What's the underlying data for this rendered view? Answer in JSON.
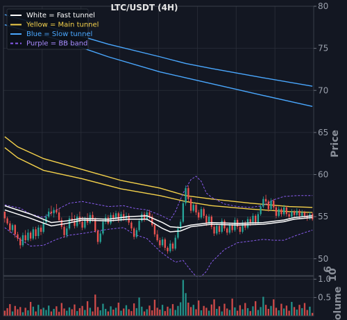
{
  "chart_data": {
    "type": "line",
    "title": "LTC/USDT (4H)",
    "ylabel": "Price",
    "volume_ylabel": "Volume",
    "volume_exponent": "6",
    "ylim": [
      48,
      80
    ],
    "yticks": [
      {
        "value": 50,
        "label": "50"
      },
      {
        "value": 55,
        "label": "55"
      },
      {
        "value": 60,
        "label": "60"
      },
      {
        "value": 65,
        "label": "65"
      },
      {
        "value": 70,
        "label": "70"
      },
      {
        "value": 75,
        "label": "75"
      },
      {
        "value": 80,
        "label": "80"
      }
    ],
    "volume_ylim": [
      0,
      1.08
    ],
    "volume_yticks": [
      {
        "value": 0.5,
        "label": "0.5"
      },
      {
        "value": 1.0,
        "label": "1.0"
      }
    ],
    "grid": true,
    "legend": {
      "placement": "top-left",
      "entries": [
        {
          "label": "White = Fast tunnel",
          "color": "#ffffff",
          "style": "solid"
        },
        {
          "label": "Yellow = Main tunnel",
          "color": "#f5d24b",
          "style": "solid"
        },
        {
          "label": "Blue = Slow tunnel",
          "color": "#4aa8ff",
          "style": "solid"
        },
        {
          "label": "Purple = BB band",
          "color": "#8a5cf0",
          "style": "dashed"
        }
      ]
    },
    "colors": {
      "background": "#131722",
      "grid": "#2a2f3a",
      "up": "#26a69a",
      "down": "#ef5350",
      "fast": "#ffffff",
      "main": "#f5d24b",
      "slow": "#4aa8ff",
      "bb": "#8a5cf0"
    },
    "n_candles": 120,
    "ohlc": [
      [
        55.6,
        55.6,
        54.3,
        54.8
      ],
      [
        54.8,
        55.0,
        54.0,
        54.2
      ],
      [
        54.2,
        54.5,
        53.1,
        53.4
      ],
      [
        53.4,
        54.2,
        53.1,
        54.0
      ],
      [
        54.0,
        54.1,
        52.5,
        52.9
      ],
      [
        52.9,
        53.2,
        52.1,
        52.4
      ],
      [
        52.4,
        52.6,
        51.2,
        51.6
      ],
      [
        51.6,
        53.1,
        51.4,
        52.8
      ],
      [
        52.8,
        53.4,
        51.9,
        52.2
      ],
      [
        52.2,
        53.5,
        52.0,
        53.1
      ],
      [
        53.1,
        53.3,
        52.1,
        52.4
      ],
      [
        52.4,
        53.8,
        52.2,
        53.5
      ],
      [
        53.5,
        53.8,
        52.3,
        52.7
      ],
      [
        52.7,
        54.0,
        52.4,
        53.7
      ],
      [
        53.7,
        54.0,
        52.8,
        53.2
      ],
      [
        53.2,
        54.6,
        53.0,
        54.3
      ],
      [
        54.3,
        55.3,
        54.1,
        55.0
      ],
      [
        55.0,
        56.0,
        54.8,
        55.6
      ],
      [
        55.6,
        56.3,
        55.1,
        55.4
      ],
      [
        55.4,
        56.1,
        54.9,
        55.8
      ],
      [
        55.8,
        56.5,
        55.3,
        55.5
      ],
      [
        55.5,
        56.0,
        54.4,
        54.6
      ],
      [
        54.6,
        54.9,
        53.5,
        53.8
      ],
      [
        53.8,
        54.1,
        52.5,
        52.8
      ],
      [
        52.8,
        53.9,
        52.5,
        53.6
      ],
      [
        53.6,
        55.1,
        53.4,
        54.8
      ],
      [
        54.8,
        55.5,
        54.3,
        54.5
      ],
      [
        54.5,
        55.2,
        53.6,
        53.9
      ],
      [
        53.9,
        55.3,
        53.7,
        55.0
      ],
      [
        55.0,
        55.6,
        54.1,
        54.4
      ],
      [
        54.4,
        55.0,
        53.4,
        53.7
      ],
      [
        53.7,
        55.0,
        53.5,
        54.7
      ],
      [
        54.7,
        55.4,
        54.0,
        54.3
      ],
      [
        54.3,
        55.5,
        54.1,
        55.2
      ],
      [
        55.2,
        55.6,
        54.4,
        54.7
      ],
      [
        54.7,
        54.9,
        53.1,
        53.3
      ],
      [
        53.3,
        53.5,
        51.7,
        52.0
      ],
      [
        52.0,
        53.3,
        51.8,
        53.0
      ],
      [
        53.0,
        54.7,
        52.8,
        54.4
      ],
      [
        54.4,
        55.3,
        54.1,
        54.9
      ],
      [
        54.9,
        55.2,
        54.0,
        54.2
      ],
      [
        54.2,
        55.5,
        54.0,
        55.2
      ],
      [
        55.2,
        55.5,
        54.4,
        54.8
      ],
      [
        54.8,
        55.7,
        54.5,
        55.4
      ],
      [
        55.4,
        55.6,
        54.3,
        54.6
      ],
      [
        54.6,
        55.6,
        54.4,
        55.3
      ],
      [
        55.3,
        55.8,
        54.5,
        54.8
      ],
      [
        54.8,
        55.5,
        54.4,
        55.1
      ],
      [
        55.1,
        55.4,
        54.0,
        54.3
      ],
      [
        54.3,
        54.5,
        53.3,
        53.6
      ],
      [
        53.6,
        53.8,
        52.3,
        52.6
      ],
      [
        52.6,
        53.7,
        52.4,
        53.4
      ],
      [
        53.4,
        54.8,
        53.2,
        54.5
      ],
      [
        54.5,
        55.6,
        54.3,
        55.3
      ],
      [
        55.3,
        55.6,
        54.4,
        54.7
      ],
      [
        54.7,
        55.8,
        54.5,
        55.5
      ],
      [
        55.5,
        55.8,
        54.7,
        55.0
      ],
      [
        55.0,
        55.3,
        53.8,
        54.0
      ],
      [
        54.0,
        54.2,
        52.6,
        52.9
      ],
      [
        52.9,
        53.4,
        52.0,
        52.2
      ],
      [
        52.2,
        52.5,
        51.3,
        51.6
      ],
      [
        51.6,
        52.6,
        51.4,
        52.3
      ],
      [
        52.3,
        52.5,
        51.0,
        51.3
      ],
      [
        51.3,
        51.5,
        50.6,
        50.9
      ],
      [
        50.9,
        52.2,
        50.7,
        51.8
      ],
      [
        51.8,
        52.0,
        50.9,
        51.2
      ],
      [
        51.2,
        52.8,
        51.0,
        52.5
      ],
      [
        52.5,
        53.9,
        52.3,
        53.6
      ],
      [
        53.6,
        54.7,
        53.4,
        54.4
      ],
      [
        54.4,
        56.9,
        54.2,
        56.6
      ],
      [
        56.6,
        58.7,
        56.3,
        58.4
      ],
      [
        58.4,
        58.7,
        56.8,
        57.1
      ],
      [
        57.1,
        57.3,
        55.4,
        55.7
      ],
      [
        55.7,
        56.7,
        55.5,
        56.4
      ],
      [
        56.4,
        56.6,
        55.2,
        55.5
      ],
      [
        55.5,
        55.8,
        54.6,
        54.9
      ],
      [
        54.9,
        56.2,
        54.7,
        55.9
      ],
      [
        55.9,
        56.1,
        54.8,
        55.1
      ],
      [
        55.1,
        55.3,
        53.9,
        54.2
      ],
      [
        54.2,
        55.3,
        54.0,
        55.0
      ],
      [
        55.0,
        55.2,
        53.5,
        53.8
      ],
      [
        53.8,
        54.1,
        52.7,
        53.0
      ],
      [
        53.0,
        54.2,
        52.8,
        53.9
      ],
      [
        53.9,
        54.1,
        52.9,
        53.2
      ],
      [
        53.2,
        54.8,
        53.0,
        54.5
      ],
      [
        54.5,
        54.7,
        53.3,
        53.6
      ],
      [
        53.6,
        53.8,
        52.8,
        53.1
      ],
      [
        53.1,
        54.3,
        52.9,
        54.0
      ],
      [
        54.0,
        54.3,
        53.1,
        53.4
      ],
      [
        53.4,
        54.9,
        53.2,
        54.6
      ],
      [
        54.6,
        54.8,
        53.5,
        53.8
      ],
      [
        53.8,
        54.2,
        52.9,
        53.2
      ],
      [
        53.2,
        54.6,
        53.0,
        54.3
      ],
      [
        54.3,
        54.5,
        53.4,
        53.7
      ],
      [
        53.7,
        55.0,
        53.5,
        54.7
      ],
      [
        54.7,
        55.0,
        53.9,
        54.2
      ],
      [
        54.2,
        55.4,
        54.0,
        55.1
      ],
      [
        55.1,
        55.3,
        54.0,
        54.3
      ],
      [
        54.3,
        55.6,
        54.1,
        55.3
      ],
      [
        55.3,
        56.5,
        55.1,
        56.2
      ],
      [
        56.2,
        57.4,
        56.0,
        57.1
      ],
      [
        57.1,
        57.6,
        56.5,
        56.8
      ],
      [
        56.8,
        57.0,
        55.6,
        55.9
      ],
      [
        55.9,
        57.2,
        55.7,
        56.9
      ],
      [
        56.9,
        57.1,
        55.8,
        56.1
      ],
      [
        56.1,
        56.3,
        54.8,
        55.1
      ],
      [
        55.1,
        56.2,
        54.9,
        55.9
      ],
      [
        55.9,
        56.1,
        55.0,
        55.3
      ],
      [
        55.3,
        56.4,
        55.1,
        56.1
      ],
      [
        56.1,
        56.3,
        55.0,
        55.3
      ],
      [
        55.3,
        55.5,
        54.7,
        55.0
      ],
      [
        55.0,
        55.9,
        54.8,
        55.6
      ],
      [
        55.6,
        55.8,
        54.9,
        55.2
      ],
      [
        55.2,
        56.0,
        55.0,
        55.7
      ],
      [
        55.7,
        55.9,
        54.8,
        55.1
      ],
      [
        55.1,
        55.8,
        54.9,
        55.5
      ],
      [
        55.5,
        55.7,
        54.8,
        55.1
      ],
      [
        55.1,
        55.4,
        54.5,
        54.8
      ],
      [
        54.8,
        55.6,
        54.6,
        55.3
      ],
      [
        55.3,
        55.5,
        54.5,
        54.7
      ]
    ],
    "volume": [
      0.14,
      0.21,
      0.32,
      0.12,
      0.27,
      0.18,
      0.24,
      0.1,
      0.22,
      0.15,
      0.38,
      0.25,
      0.12,
      0.3,
      0.18,
      0.22,
      0.16,
      0.28,
      0.12,
      0.19,
      0.26,
      0.11,
      0.35,
      0.2,
      0.14,
      0.23,
      0.18,
      0.31,
      0.13,
      0.21,
      0.27,
      0.16,
      0.4,
      0.22,
      0.12,
      0.58,
      0.24,
      0.15,
      0.33,
      0.19,
      0.12,
      0.26,
      0.17,
      0.22,
      0.36,
      0.14,
      0.2,
      0.29,
      0.18,
      0.13,
      0.34,
      0.21,
      0.5,
      0.25,
      0.12,
      0.18,
      0.28,
      0.15,
      0.44,
      0.22,
      0.17,
      0.3,
      0.13,
      0.25,
      0.2,
      0.32,
      0.16,
      0.27,
      0.37,
      0.98,
      0.62,
      0.36,
      0.24,
      0.3,
      0.18,
      0.42,
      0.15,
      0.27,
      0.22,
      0.14,
      0.31,
      0.45,
      0.19,
      0.26,
      0.12,
      0.33,
      0.2,
      0.16,
      0.47,
      0.23,
      0.14,
      0.29,
      0.18,
      0.35,
      0.21,
      0.13,
      0.26,
      0.4,
      0.16,
      0.24,
      0.52,
      0.3,
      0.19,
      0.27,
      0.45,
      0.22,
      0.15,
      0.33,
      0.2,
      0.28,
      0.14,
      0.38,
      0.24,
      0.17,
      0.3,
      0.21,
      0.35,
      0.16,
      0.25,
      0.08
    ],
    "fast_tunnel": {
      "upper": [
        [
          0,
          56.3
        ],
        [
          10,
          55.3
        ],
        [
          18,
          54.3
        ],
        [
          24,
          54.5
        ],
        [
          30,
          54.8
        ],
        [
          40,
          54.7
        ],
        [
          48,
          55.0
        ],
        [
          55,
          55.1
        ],
        [
          61,
          54.3
        ],
        [
          64,
          53.8
        ],
        [
          68,
          53.7
        ],
        [
          72,
          54.0
        ],
        [
          80,
          54.3
        ],
        [
          90,
          54.2
        ],
        [
          100,
          54.3
        ],
        [
          108,
          54.6
        ],
        [
          112,
          54.9
        ],
        [
          119,
          55.1
        ]
      ],
      "lower": [
        [
          0,
          55.8
        ],
        [
          10,
          54.8
        ],
        [
          18,
          53.9
        ],
        [
          24,
          54.2
        ],
        [
          30,
          54.6
        ],
        [
          40,
          54.5
        ],
        [
          48,
          54.7
        ],
        [
          55,
          54.7
        ],
        [
          61,
          53.6
        ],
        [
          64,
          53.2
        ],
        [
          68,
          53.3
        ],
        [
          72,
          53.8
        ],
        [
          80,
          54.1
        ],
        [
          90,
          54.0
        ],
        [
          100,
          54.1
        ],
        [
          108,
          54.4
        ],
        [
          112,
          54.7
        ],
        [
          119,
          54.9
        ]
      ]
    },
    "main_tunnel": {
      "upper": [
        [
          0,
          64.5
        ],
        [
          5,
          63.3
        ],
        [
          15,
          61.9
        ],
        [
          30,
          60.6
        ],
        [
          45,
          59.3
        ],
        [
          60,
          58.4
        ],
        [
          70,
          57.5
        ],
        [
          80,
          57.1
        ],
        [
          95,
          56.6
        ],
        [
          110,
          56.2
        ],
        [
          119,
          56.1
        ]
      ],
      "lower": [
        [
          0,
          63.2
        ],
        [
          5,
          62.0
        ],
        [
          15,
          60.5
        ],
        [
          30,
          59.5
        ],
        [
          45,
          58.3
        ],
        [
          60,
          57.5
        ],
        [
          70,
          56.8
        ],
        [
          80,
          56.3
        ],
        [
          95,
          55.9
        ],
        [
          110,
          55.6
        ],
        [
          119,
          55.5
        ]
      ]
    },
    "slow_tunnel": {
      "upper": [
        [
          0,
          79.0
        ],
        [
          20,
          77.3
        ],
        [
          40,
          75.5
        ],
        [
          60,
          74.0
        ],
        [
          70,
          73.2
        ],
        [
          80,
          72.6
        ],
        [
          100,
          71.5
        ],
        [
          119,
          70.5
        ]
      ],
      "lower": [
        [
          0,
          77.8
        ],
        [
          20,
          76.1
        ],
        [
          40,
          74.0
        ],
        [
          60,
          72.2
        ],
        [
          70,
          71.5
        ],
        [
          80,
          70.8
        ],
        [
          100,
          69.4
        ],
        [
          119,
          68.1
        ]
      ]
    },
    "bb_band": {
      "upper": [
        [
          0,
          56.4
        ],
        [
          6,
          56.0
        ],
        [
          10,
          55.3
        ],
        [
          15,
          54.9
        ],
        [
          20,
          55.8
        ],
        [
          25,
          56.6
        ],
        [
          30,
          56.8
        ],
        [
          40,
          56.2
        ],
        [
          46,
          56.3
        ],
        [
          50,
          56.0
        ],
        [
          55,
          55.8
        ],
        [
          60,
          55.2
        ],
        [
          64,
          54.6
        ],
        [
          66,
          55.6
        ],
        [
          69,
          57.8
        ],
        [
          72,
          59.4
        ],
        [
          74,
          59.8
        ],
        [
          76,
          59.2
        ],
        [
          78,
          57.8
        ],
        [
          80,
          57.3
        ],
        [
          85,
          56.5
        ],
        [
          90,
          56.2
        ],
        [
          95,
          56.1
        ],
        [
          100,
          56.3
        ],
        [
          104,
          57.0
        ],
        [
          108,
          57.4
        ],
        [
          113,
          57.5
        ],
        [
          119,
          57.5
        ]
      ],
      "lower": [
        [
          0,
          53.7
        ],
        [
          6,
          52.3
        ],
        [
          10,
          51.5
        ],
        [
          15,
          51.6
        ],
        [
          20,
          52.3
        ],
        [
          25,
          52.8
        ],
        [
          30,
          53.0
        ],
        [
          40,
          53.5
        ],
        [
          46,
          53.7
        ],
        [
          50,
          52.9
        ],
        [
          55,
          52.4
        ],
        [
          60,
          50.9
        ],
        [
          63,
          50.2
        ],
        [
          66,
          49.6
        ],
        [
          69,
          49.8
        ],
        [
          72,
          48.6
        ],
        [
          74,
          47.9
        ],
        [
          76,
          47.9
        ],
        [
          78,
          48.5
        ],
        [
          80,
          49.6
        ],
        [
          85,
          51.1
        ],
        [
          90,
          51.9
        ],
        [
          95,
          52.1
        ],
        [
          100,
          52.3
        ],
        [
          104,
          52.2
        ],
        [
          108,
          52.2
        ],
        [
          113,
          52.8
        ],
        [
          119,
          53.4
        ]
      ]
    }
  }
}
